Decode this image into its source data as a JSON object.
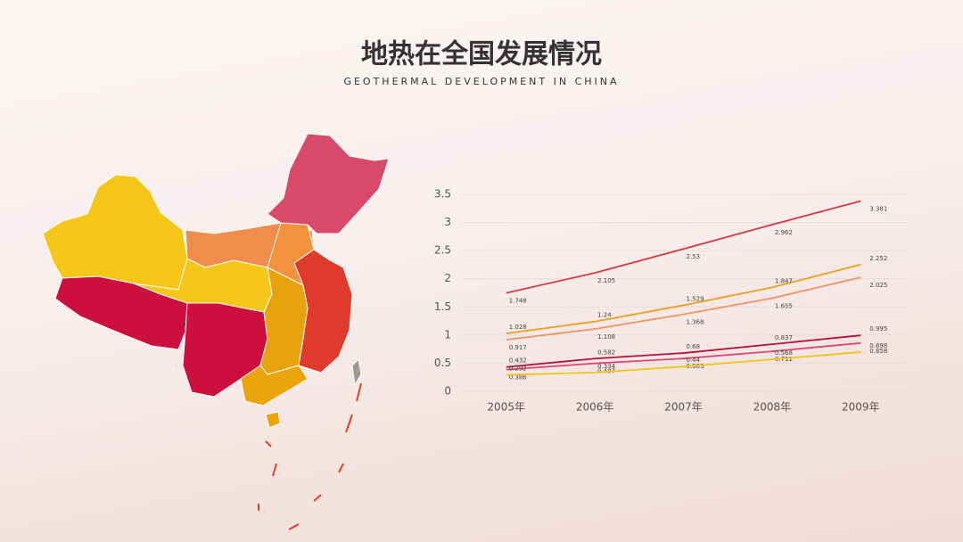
{
  "chart_data": {
    "type": "line",
    "title": "地热在全国发展情况",
    "subtitle": "GEOTHERMAL DEVELOPMENT IN CHINA",
    "categories": [
      "2005年",
      "2006年",
      "2007年",
      "2008年",
      "2009年"
    ],
    "series": [
      {
        "color": "#d8393b",
        "values": [
          1.748,
          2.105,
          2.53,
          2.962,
          3.381
        ]
      },
      {
        "color": "#e6a21c",
        "values": [
          1.028,
          1.24,
          1.529,
          1.847,
          2.252
        ]
      },
      {
        "color": "#ef9562",
        "values": [
          0.917,
          1.108,
          1.368,
          1.655,
          2.025
        ]
      },
      {
        "color": "#b3123f",
        "values": [
          0.432,
          0.582,
          0.68,
          0.837,
          0.995
        ]
      },
      {
        "color": "#d9477a",
        "values": [
          0.386,
          0.497,
          0.583,
          0.711,
          0.858
        ]
      },
      {
        "color": "#f2c412",
        "values": [
          0.292,
          0.334,
          0.44,
          0.568,
          0.698
        ]
      }
    ],
    "ylim": [
      0,
      3.5
    ],
    "yticks": [
      0,
      0.5,
      1,
      1.5,
      2,
      2.5,
      3,
      3.5
    ],
    "grid": true
  }
}
